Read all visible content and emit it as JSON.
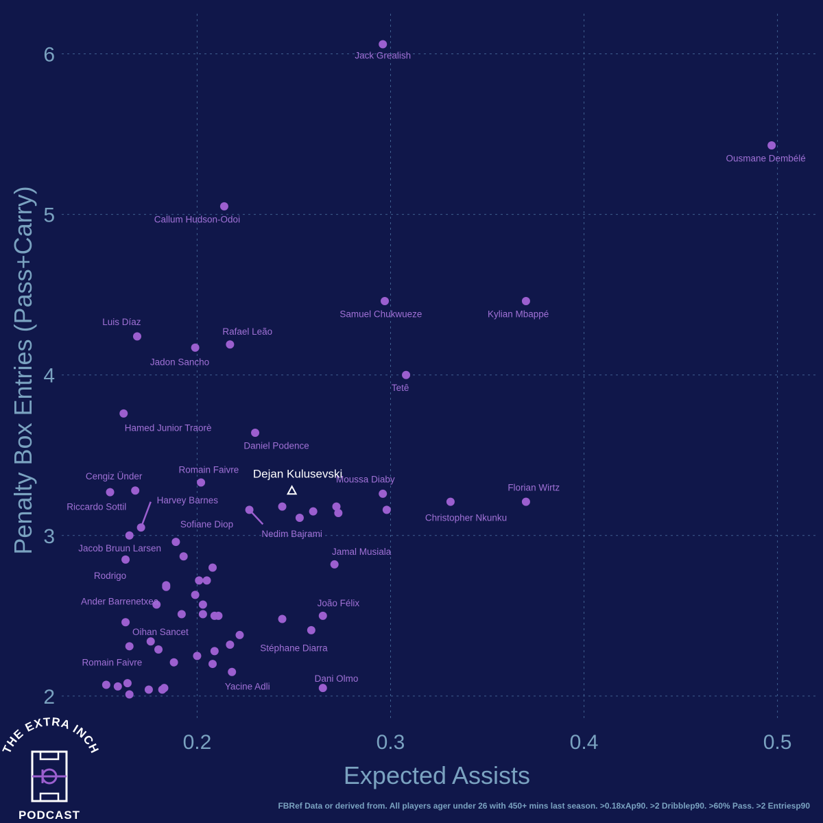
{
  "chart_data": {
    "type": "scatter",
    "xlabel": "Expected Assists",
    "ylabel": "Penalty Box Entries (Pass+Carry)",
    "xlim": [
      0.13,
      0.52
    ],
    "ylim": [
      1.85,
      6.25
    ],
    "x_ticks": [
      "0.2",
      "0.3",
      "0.4",
      "0.5"
    ],
    "y_ticks": [
      "2",
      "3",
      "4",
      "5",
      "6"
    ],
    "grid": true,
    "points": [
      {
        "x": 0.296,
        "y": 6.06
      },
      {
        "x": 0.497,
        "y": 5.43
      },
      {
        "x": 0.214,
        "y": 5.05
      },
      {
        "x": 0.297,
        "y": 4.46
      },
      {
        "x": 0.37,
        "y": 4.46
      },
      {
        "x": 0.169,
        "y": 4.24
      },
      {
        "x": 0.199,
        "y": 4.17
      },
      {
        "x": 0.217,
        "y": 4.19
      },
      {
        "x": 0.308,
        "y": 4.0
      },
      {
        "x": 0.162,
        "y": 3.76
      },
      {
        "x": 0.23,
        "y": 3.64
      },
      {
        "x": 0.202,
        "y": 3.33
      },
      {
        "x": 0.155,
        "y": 3.27
      },
      {
        "x": 0.168,
        "y": 3.28
      },
      {
        "x": 0.296,
        "y": 3.26
      },
      {
        "x": 0.37,
        "y": 3.21
      },
      {
        "x": 0.331,
        "y": 3.21
      },
      {
        "x": 0.171,
        "y": 3.05
      },
      {
        "x": 0.165,
        "y": 3.0
      },
      {
        "x": 0.227,
        "y": 3.16
      },
      {
        "x": 0.244,
        "y": 3.18
      },
      {
        "x": 0.253,
        "y": 3.11
      },
      {
        "x": 0.26,
        "y": 3.15
      },
      {
        "x": 0.272,
        "y": 3.18
      },
      {
        "x": 0.273,
        "y": 3.14
      },
      {
        "x": 0.298,
        "y": 3.16
      },
      {
        "x": 0.189,
        "y": 2.96
      },
      {
        "x": 0.193,
        "y": 2.87
      },
      {
        "x": 0.163,
        "y": 2.85
      },
      {
        "x": 0.208,
        "y": 2.8
      },
      {
        "x": 0.271,
        "y": 2.82
      },
      {
        "x": 0.201,
        "y": 2.72
      },
      {
        "x": 0.205,
        "y": 2.72
      },
      {
        "x": 0.184,
        "y": 2.69
      },
      {
        "x": 0.184,
        "y": 2.68
      },
      {
        "x": 0.199,
        "y": 2.63
      },
      {
        "x": 0.179,
        "y": 2.57
      },
      {
        "x": 0.203,
        "y": 2.57
      },
      {
        "x": 0.192,
        "y": 2.51
      },
      {
        "x": 0.203,
        "y": 2.51
      },
      {
        "x": 0.209,
        "y": 2.5
      },
      {
        "x": 0.211,
        "y": 2.5
      },
      {
        "x": 0.244,
        "y": 2.48
      },
      {
        "x": 0.265,
        "y": 2.5
      },
      {
        "x": 0.163,
        "y": 2.46
      },
      {
        "x": 0.259,
        "y": 2.41
      },
      {
        "x": 0.222,
        "y": 2.38
      },
      {
        "x": 0.176,
        "y": 2.34
      },
      {
        "x": 0.217,
        "y": 2.32
      },
      {
        "x": 0.165,
        "y": 2.31
      },
      {
        "x": 0.18,
        "y": 2.29
      },
      {
        "x": 0.209,
        "y": 2.28
      },
      {
        "x": 0.2,
        "y": 2.25
      },
      {
        "x": 0.188,
        "y": 2.21
      },
      {
        "x": 0.208,
        "y": 2.2
      },
      {
        "x": 0.218,
        "y": 2.15
      },
      {
        "x": 0.153,
        "y": 2.07
      },
      {
        "x": 0.159,
        "y": 2.06
      },
      {
        "x": 0.164,
        "y": 2.08
      },
      {
        "x": 0.175,
        "y": 2.04
      },
      {
        "x": 0.182,
        "y": 2.04
      },
      {
        "x": 0.183,
        "y": 2.05
      },
      {
        "x": 0.165,
        "y": 2.01
      },
      {
        "x": 0.265,
        "y": 2.05
      }
    ],
    "labels": [
      {
        "text": "Jack Grealish",
        "x": 0.296,
        "y": 5.97,
        "anchor": "middle"
      },
      {
        "text": "Ousmane Dembélé",
        "x": 0.494,
        "y": 5.33,
        "anchor": "middle"
      },
      {
        "text": "Callum Hudson-Odoi",
        "x": 0.2,
        "y": 4.95,
        "anchor": "middle"
      },
      {
        "text": "Samuel Chukwueze",
        "x": 0.295,
        "y": 4.36,
        "anchor": "middle"
      },
      {
        "text": "Kylian Mbappé",
        "x": 0.366,
        "y": 4.36,
        "anchor": "middle"
      },
      {
        "text": "Luis Díaz",
        "x": 0.161,
        "y": 4.31,
        "anchor": "middle"
      },
      {
        "text": "Rafael Leão",
        "x": 0.226,
        "y": 4.25,
        "anchor": "middle"
      },
      {
        "text": "Jadon Sancho",
        "x": 0.191,
        "y": 4.06,
        "anchor": "middle"
      },
      {
        "text": "Tetê",
        "x": 0.305,
        "y": 3.9,
        "anchor": "middle"
      },
      {
        "text": "Hamed Junior Traorè",
        "x": 0.185,
        "y": 3.65,
        "anchor": "middle"
      },
      {
        "text": "Daniel Podence",
        "x": 0.241,
        "y": 3.54,
        "anchor": "middle"
      },
      {
        "text": "Romain Faivre",
        "x": 0.206,
        "y": 3.39,
        "anchor": "middle"
      },
      {
        "text": "Cengiz Ünder",
        "x": 0.157,
        "y": 3.35,
        "anchor": "middle"
      },
      {
        "text": "Moussa Diaby",
        "x": 0.287,
        "y": 3.33,
        "anchor": "middle"
      },
      {
        "text": "Florian Wirtz",
        "x": 0.374,
        "y": 3.28,
        "anchor": "middle"
      },
      {
        "text": "Riccardo Sottil",
        "x": 0.148,
        "y": 3.16,
        "anchor": "middle"
      },
      {
        "text": "Harvey Barnes",
        "x": 0.195,
        "y": 3.2,
        "anchor": "middle"
      },
      {
        "text": "Christopher Nkunku",
        "x": 0.339,
        "y": 3.09,
        "anchor": "middle"
      },
      {
        "text": "Sofiane Diop",
        "x": 0.205,
        "y": 3.05,
        "anchor": "middle"
      },
      {
        "text": "Nedim Bajrami",
        "x": 0.249,
        "y": 2.99,
        "anchor": "middle"
      },
      {
        "text": "Jacob Bruun Larsen",
        "x": 0.16,
        "y": 2.9,
        "anchor": "middle"
      },
      {
        "text": "Jamal Musiala",
        "x": 0.285,
        "y": 2.88,
        "anchor": "middle"
      },
      {
        "text": "Rodrigo",
        "x": 0.155,
        "y": 2.73,
        "anchor": "middle"
      },
      {
        "text": "Ander Barrenetxea",
        "x": 0.16,
        "y": 2.57,
        "anchor": "middle"
      },
      {
        "text": "João Félix",
        "x": 0.273,
        "y": 2.56,
        "anchor": "middle"
      },
      {
        "text": "Oihan Sancet",
        "x": 0.181,
        "y": 2.38,
        "anchor": "middle"
      },
      {
        "text": "Stéphane Diarra",
        "x": 0.25,
        "y": 2.28,
        "anchor": "middle"
      },
      {
        "text": "Romain Faivre",
        "x": 0.156,
        "y": 2.19,
        "anchor": "middle"
      },
      {
        "text": "Dani Olmo",
        "x": 0.272,
        "y": 2.09,
        "anchor": "middle"
      },
      {
        "text": "Yacine Adli",
        "x": 0.226,
        "y": 2.04,
        "anchor": "middle"
      }
    ],
    "leader_lines": [
      {
        "x1": 0.171,
        "y1": 3.05,
        "x2": 0.176,
        "y2": 3.21
      },
      {
        "x1": 0.227,
        "y1": 3.16,
        "x2": 0.234,
        "y2": 3.07
      }
    ],
    "highlight": {
      "text": "Dejan Kulusevski",
      "x": 0.249,
      "y": 3.28,
      "label_x": 0.252,
      "label_y": 3.36
    }
  },
  "caption": "FBRef Data or derived from. All players ager under 26 with 450+ mins last season. >0.18xAp90. >2 Dribblep90. >60% Pass. >2 Entriesp90",
  "logo": {
    "top_text": "THE EXTRA INCH",
    "bottom_text": "PODCAST"
  }
}
